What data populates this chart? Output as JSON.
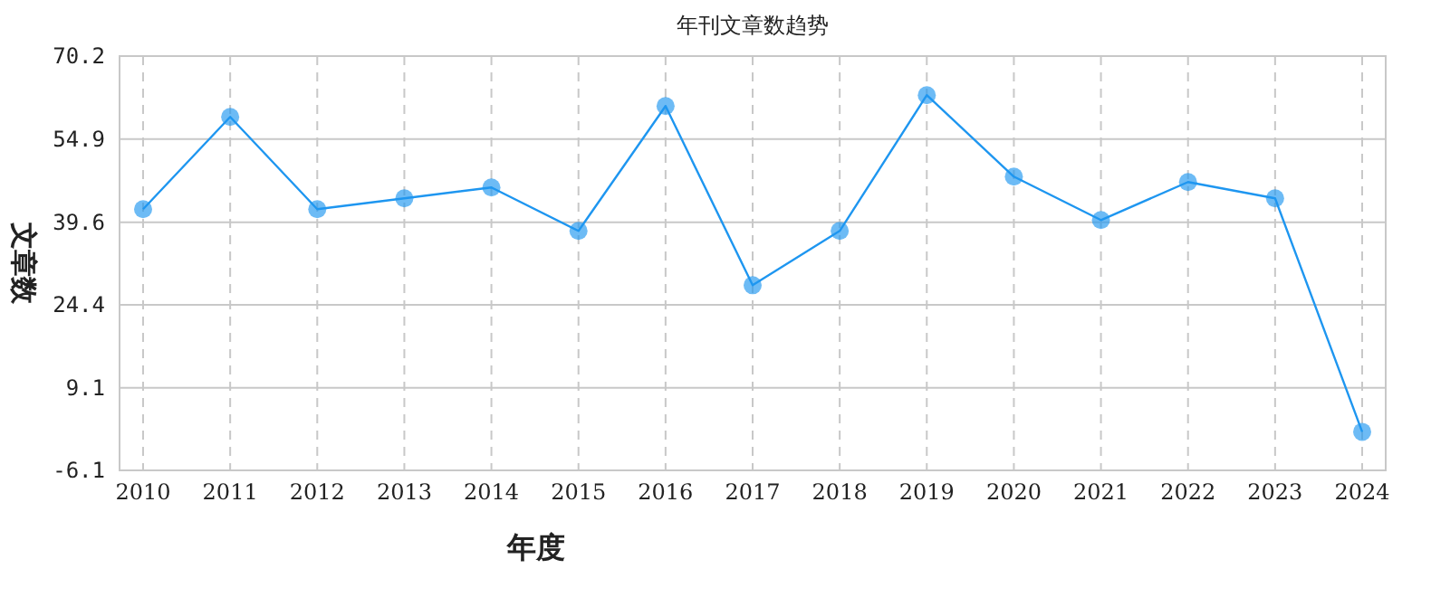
{
  "chart_data": {
    "type": "line",
    "title": "年刊文章数趋势",
    "xlabel": "年度",
    "ylabel": "文章数",
    "categories": [
      "2010",
      "2011",
      "2012",
      "2013",
      "2014",
      "2015",
      "2016",
      "2017",
      "2018",
      "2019",
      "2020",
      "2021",
      "2022",
      "2023",
      "2024"
    ],
    "series": [
      {
        "color": "#1e96f0",
        "values": [
          42,
          59,
          42,
          44,
          46,
          38,
          61,
          28,
          38,
          63,
          48,
          40,
          47,
          44,
          1
        ]
      }
    ],
    "ylim": [
      -6.1,
      70.2
    ],
    "yticks": [
      -6.1,
      9.1,
      24.4,
      39.6,
      54.9,
      70.2
    ],
    "grid": true,
    "marker": "circle",
    "line_style": "solid"
  }
}
